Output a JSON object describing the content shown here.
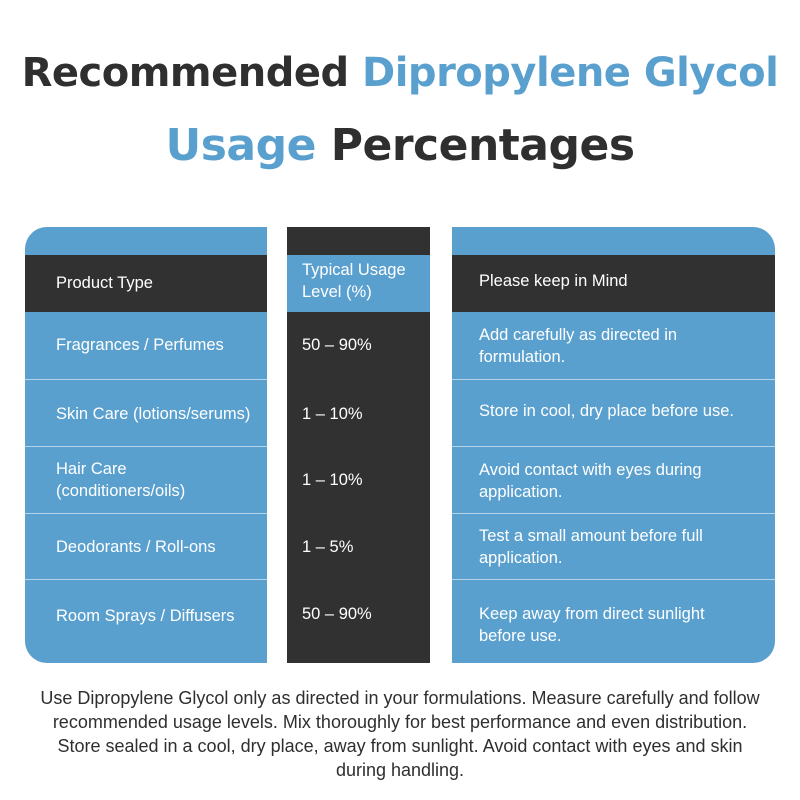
{
  "title": {
    "line1_part1": "Recommended ",
    "line1_part2_accent": "Dipropylene Glycol",
    "line2_part1_accent": "Usage",
    "line2_part2": " Percentages"
  },
  "colors": {
    "accent": "#5aa0cf",
    "dark": "#313131",
    "text": "#2f2f2f"
  },
  "table": {
    "headers": [
      "Product Type",
      "Typical Usage Level (%)",
      "Please keep in Mind"
    ],
    "rows": [
      {
        "product": "Fragrances / Perfumes",
        "usage": "50 – 90%",
        "note": "Add carefully as directed in formulation."
      },
      {
        "product": "Skin Care (lotions/serums)",
        "usage": "1 – 10%",
        "note": "Store in cool, dry place before use."
      },
      {
        "product": "Hair Care (conditioners/oils)",
        "usage": "1 – 10%",
        "note": "Avoid contact with eyes during application."
      },
      {
        "product": "Deodorants / Roll-ons",
        "usage": "1 – 5%",
        "note": "Test a small amount before full application."
      },
      {
        "product": "Room Sprays / Diffusers",
        "usage": "50 – 90%",
        "note": "Keep away from direct sunlight before use."
      }
    ]
  },
  "footer": "Use Dipropylene Glycol only as directed in your formulations. Measure carefully and follow recommended usage levels. Mix thoroughly for best performance and even distribution. Store sealed in a cool, dry place, away from sunlight. Avoid contact with eyes and skin during handling."
}
